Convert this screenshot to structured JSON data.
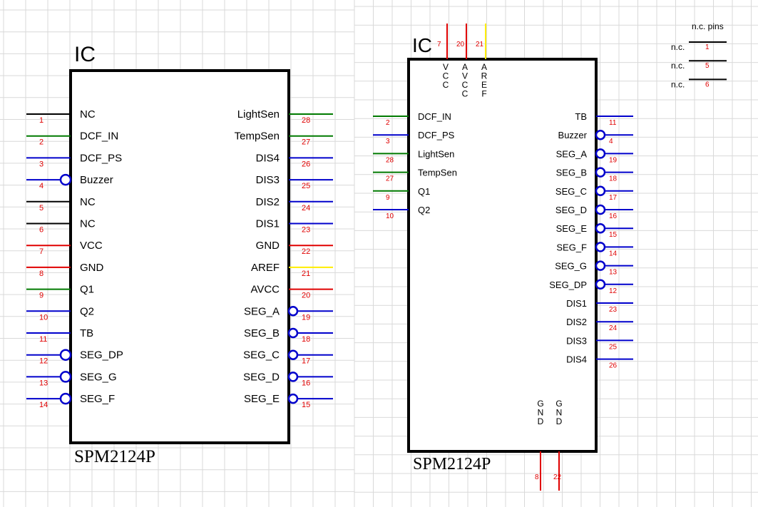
{
  "colors": {
    "grid": "#d9d9d9",
    "body": "#000000",
    "pin_number": "#e00000",
    "wire_black": "#000000",
    "wire_green": "#007a00",
    "wire_blue": "#0000cc",
    "wire_red": "#e00000",
    "wire_yellow": "#ffee00"
  },
  "left_symbol": {
    "designator": "IC",
    "part": "SPM2124P",
    "left_pins": [
      {
        "name": "NC",
        "number": "1",
        "color": "wire_black",
        "inverted": false
      },
      {
        "name": "DCF_IN",
        "number": "2",
        "color": "wire_green",
        "inverted": false
      },
      {
        "name": "DCF_PS",
        "number": "3",
        "color": "wire_blue",
        "inverted": false
      },
      {
        "name": "Buzzer",
        "number": "4",
        "color": "wire_blue",
        "inverted": true
      },
      {
        "name": "NC",
        "number": "5",
        "color": "wire_black",
        "inverted": false
      },
      {
        "name": "NC",
        "number": "6",
        "color": "wire_black",
        "inverted": false
      },
      {
        "name": "VCC",
        "number": "7",
        "color": "wire_red",
        "inverted": false
      },
      {
        "name": "GND",
        "number": "8",
        "color": "wire_red",
        "inverted": false
      },
      {
        "name": "Q1",
        "number": "9",
        "color": "wire_green",
        "inverted": false
      },
      {
        "name": "Q2",
        "number": "10",
        "color": "wire_blue",
        "inverted": false
      },
      {
        "name": "TB",
        "number": "11",
        "color": "wire_blue",
        "inverted": false
      },
      {
        "name": "SEG_DP",
        "number": "12",
        "color": "wire_blue",
        "inverted": true
      },
      {
        "name": "SEG_G",
        "number": "13",
        "color": "wire_blue",
        "inverted": true
      },
      {
        "name": "SEG_F",
        "number": "14",
        "color": "wire_blue",
        "inverted": true
      }
    ],
    "right_pins": [
      {
        "name": "LightSen",
        "number": "28",
        "color": "wire_green",
        "inverted": false
      },
      {
        "name": "TempSen",
        "number": "27",
        "color": "wire_green",
        "inverted": false
      },
      {
        "name": "DIS4",
        "number": "26",
        "color": "wire_blue",
        "inverted": false
      },
      {
        "name": "DIS3",
        "number": "25",
        "color": "wire_blue",
        "inverted": false
      },
      {
        "name": "DIS2",
        "number": "24",
        "color": "wire_blue",
        "inverted": false
      },
      {
        "name": "DIS1",
        "number": "23",
        "color": "wire_blue",
        "inverted": false
      },
      {
        "name": "GND",
        "number": "22",
        "color": "wire_red",
        "inverted": false
      },
      {
        "name": "AREF",
        "number": "21",
        "color": "wire_yellow",
        "inverted": false
      },
      {
        "name": "AVCC",
        "number": "20",
        "color": "wire_red",
        "inverted": false
      },
      {
        "name": "SEG_A",
        "number": "19",
        "color": "wire_blue",
        "inverted": true
      },
      {
        "name": "SEG_B",
        "number": "18",
        "color": "wire_blue",
        "inverted": true
      },
      {
        "name": "SEG_C",
        "number": "17",
        "color": "wire_blue",
        "inverted": true
      },
      {
        "name": "SEG_D",
        "number": "16",
        "color": "wire_blue",
        "inverted": true
      },
      {
        "name": "SEG_E",
        "number": "15",
        "color": "wire_blue",
        "inverted": true
      }
    ]
  },
  "right_symbol": {
    "designator": "IC",
    "part": "SPM2124P",
    "top_pins": [
      {
        "name": "VCC",
        "number": "7",
        "color": "wire_red"
      },
      {
        "name": "AVCC",
        "number": "20",
        "color": "wire_red"
      },
      {
        "name": "AREF",
        "number": "21",
        "color": "wire_yellow"
      }
    ],
    "bottom_pins": [
      {
        "name": "GND",
        "number": "8",
        "color": "wire_red"
      },
      {
        "name": "GND",
        "number": "22",
        "color": "wire_red"
      }
    ],
    "left_pins": [
      {
        "name": "DCF_IN",
        "number": "2",
        "color": "wire_green",
        "inverted": false
      },
      {
        "name": "DCF_PS",
        "number": "3",
        "color": "wire_blue",
        "inverted": false
      },
      {
        "name": "LightSen",
        "number": "28",
        "color": "wire_green",
        "inverted": false
      },
      {
        "name": "TempSen",
        "number": "27",
        "color": "wire_green",
        "inverted": false
      },
      {
        "name": "Q1",
        "number": "9",
        "color": "wire_green",
        "inverted": false
      },
      {
        "name": "Q2",
        "number": "10",
        "color": "wire_blue",
        "inverted": false
      }
    ],
    "right_pins": [
      {
        "name": "TB",
        "number": "11",
        "color": "wire_blue",
        "inverted": false
      },
      {
        "name": "Buzzer",
        "number": "4",
        "color": "wire_blue",
        "inverted": true
      },
      {
        "name": "SEG_A",
        "number": "19",
        "color": "wire_blue",
        "inverted": true
      },
      {
        "name": "SEG_B",
        "number": "18",
        "color": "wire_blue",
        "inverted": true
      },
      {
        "name": "SEG_C",
        "number": "17",
        "color": "wire_blue",
        "inverted": true
      },
      {
        "name": "SEG_D",
        "number": "16",
        "color": "wire_blue",
        "inverted": true
      },
      {
        "name": "SEG_E",
        "number": "15",
        "color": "wire_blue",
        "inverted": true
      },
      {
        "name": "SEG_F",
        "number": "14",
        "color": "wire_blue",
        "inverted": true
      },
      {
        "name": "SEG_G",
        "number": "13",
        "color": "wire_blue",
        "inverted": true
      },
      {
        "name": "SEG_DP",
        "number": "12",
        "color": "wire_blue",
        "inverted": true
      },
      {
        "name": "DIS1",
        "number": "23",
        "color": "wire_blue",
        "inverted": false
      },
      {
        "name": "DIS2",
        "number": "24",
        "color": "wire_blue",
        "inverted": false
      },
      {
        "name": "DIS3",
        "number": "25",
        "color": "wire_blue",
        "inverted": false
      },
      {
        "name": "DIS4",
        "number": "26",
        "color": "wire_blue",
        "inverted": false
      }
    ]
  },
  "nc_block": {
    "title": "n.c. pins",
    "pins": [
      {
        "name": "n.c.",
        "number": "1"
      },
      {
        "name": "n.c.",
        "number": "5"
      },
      {
        "name": "n.c.",
        "number": "6"
      }
    ]
  }
}
